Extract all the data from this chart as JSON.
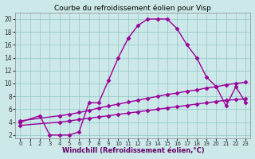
{
  "title": "Courbe du refroidissement éolien pour Visp",
  "xlabel": "Windchill (Refroidissement éolien,°C)",
  "bg_color": "#cce8e8",
  "grid_color": "#99cccc",
  "line_color": "#990099",
  "xlim": [
    -0.5,
    23.5
  ],
  "ylim": [
    1.5,
    21
  ],
  "xticks": [
    0,
    1,
    2,
    3,
    4,
    5,
    6,
    7,
    8,
    9,
    10,
    11,
    12,
    13,
    14,
    15,
    16,
    17,
    18,
    19,
    20,
    21,
    22,
    23
  ],
  "yticks": [
    2,
    4,
    6,
    8,
    10,
    12,
    14,
    16,
    18,
    20
  ],
  "series": [
    {
      "x": [
        0,
        2,
        3,
        4,
        5,
        6,
        7,
        8,
        9,
        10,
        11,
        12,
        13,
        14,
        15,
        16,
        17,
        18,
        19,
        20,
        21,
        22,
        23
      ],
      "y": [
        4,
        5,
        2,
        2,
        2,
        2.5,
        7,
        7,
        10.5,
        14,
        17,
        19,
        20,
        20,
        20,
        18.5,
        16,
        14,
        11,
        9.5,
        6.5,
        9.5,
        7
      ],
      "marker": "D",
      "markersize": 2.5,
      "linewidth": 1.0
    },
    {
      "x": [
        0,
        4,
        5,
        6,
        7,
        8,
        9,
        10,
        11,
        12,
        13,
        14,
        15,
        16,
        17,
        18,
        19,
        20,
        21,
        22,
        23
      ],
      "y": [
        4.2,
        5.0,
        5.2,
        5.5,
        5.8,
        6.2,
        6.5,
        6.8,
        7.1,
        7.4,
        7.7,
        8.0,
        8.3,
        8.5,
        8.8,
        9.0,
        9.3,
        9.5,
        9.8,
        10.0,
        10.2
      ],
      "marker": "D",
      "markersize": 2.5,
      "linewidth": 1.0
    },
    {
      "x": [
        0,
        4,
        5,
        6,
        7,
        8,
        9,
        10,
        11,
        12,
        13,
        14,
        15,
        16,
        17,
        18,
        19,
        20,
        21,
        22,
        23
      ],
      "y": [
        3.5,
        4.0,
        4.2,
        4.4,
        4.6,
        4.8,
        5.0,
        5.2,
        5.4,
        5.6,
        5.8,
        6.0,
        6.2,
        6.4,
        6.6,
        6.8,
        7.0,
        7.2,
        7.4,
        7.5,
        7.6
      ],
      "marker": "D",
      "markersize": 2.5,
      "linewidth": 1.0
    }
  ],
  "title_fontsize": 6.5,
  "xlabel_fontsize": 6,
  "tick_labelsize": 5.5
}
